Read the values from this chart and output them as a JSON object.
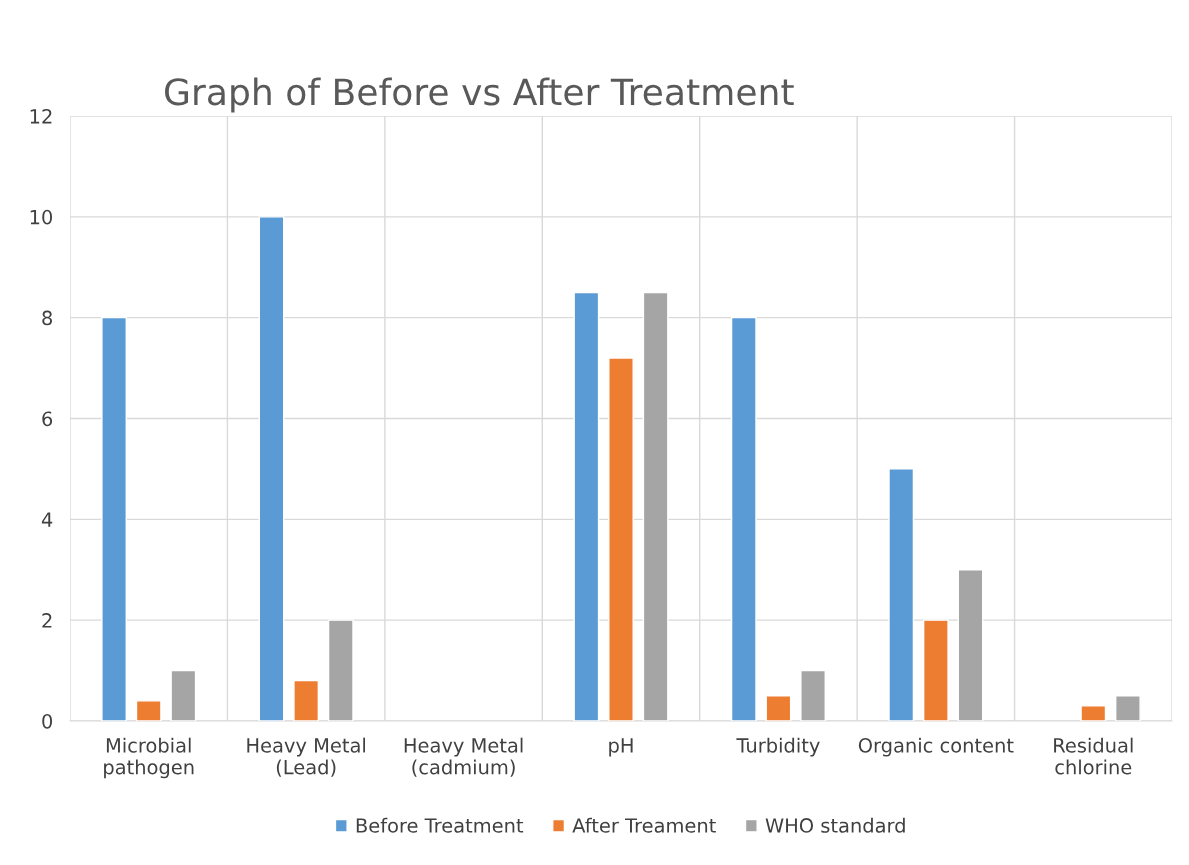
{
  "chart_data": {
    "type": "bar",
    "title": "Graph of Before vs After Treatment",
    "categories": [
      "Microbial\npathogen",
      "Heavy Metal\n(Lead)",
      "Heavy Metal\n(cadmium)",
      "pH",
      "Turbidity",
      "Organic content",
      "Residual\nchlorine"
    ],
    "series": [
      {
        "name": "Before Treatment",
        "color": "#5b9bd5",
        "values": [
          8,
          10,
          null,
          8.5,
          8,
          5,
          null
        ]
      },
      {
        "name": "After Treament",
        "color": "#ed7d31",
        "values": [
          0.4,
          0.8,
          null,
          7.2,
          0.5,
          2,
          0.3
        ]
      },
      {
        "name": "WHO standard",
        "color": "#a5a5a5",
        "values": [
          1,
          2,
          null,
          8.5,
          1,
          3,
          0.5
        ]
      }
    ],
    "ylim": [
      0,
      12
    ],
    "yticks": [
      0,
      2,
      4,
      6,
      8,
      10,
      12
    ],
    "grid": true,
    "legend": "bottom"
  }
}
